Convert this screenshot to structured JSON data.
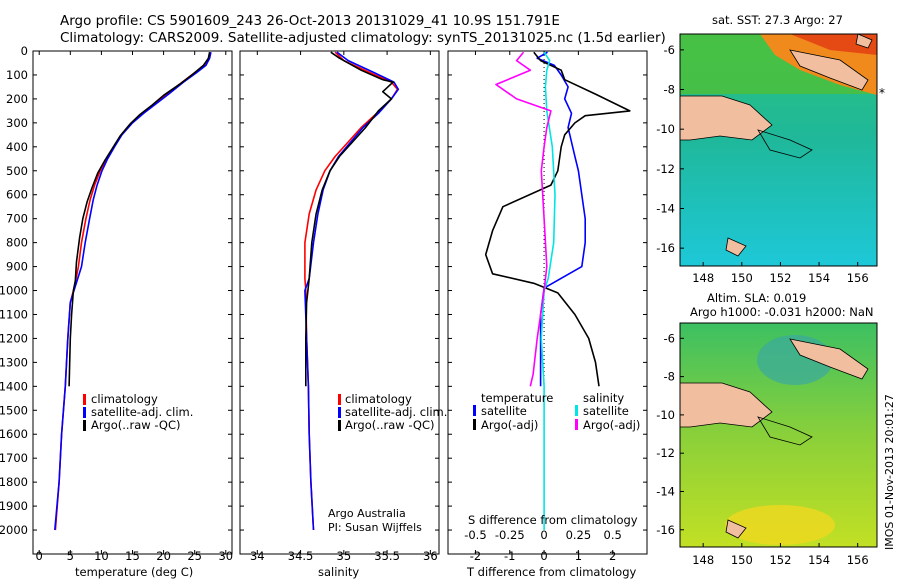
{
  "header": {
    "line1": "Argo profile: CS 5901609_243 26-Oct-2013 20131029_41 10.9S 151.791E",
    "line2": "Climatology: CARS2009. Satellite-adjusted climatology: synTS_20131025.nc (1.5d earlier)"
  },
  "colors": {
    "climatology": "#ff0000",
    "satellite": "#0000ff",
    "argo": "#000000",
    "salinity_satellite": "#00e5e5",
    "salinity_argo": "#ff00ff"
  },
  "chart_data": [
    {
      "type": "line",
      "id": "temperature",
      "xlabel": "temperature (deg C)",
      "ylabel": "",
      "xlim": [
        -1,
        31
      ],
      "ylim": [
        2100,
        0
      ],
      "xticks": [
        "0",
        "5",
        "10",
        "15",
        "20",
        "25",
        "30"
      ],
      "yticks": [
        "0",
        "100",
        "200",
        "300",
        "400",
        "500",
        "600",
        "700",
        "800",
        "900",
        "1000",
        "1100",
        "1200",
        "1300",
        "1400",
        "1500",
        "1600",
        "1700",
        "1800",
        "1900",
        "2000"
      ],
      "legend": [
        "climatology",
        "satellite-adj. clim.",
        "Argo(..raw -QC)"
      ],
      "series": [
        {
          "name": "climatology",
          "points": [
            [
              27.5,
              5
            ],
            [
              27.3,
              30
            ],
            [
              26.5,
              60
            ],
            [
              25,
              90
            ],
            [
              23,
              130
            ],
            [
              20.5,
              180
            ],
            [
              18.5,
              220
            ],
            [
              16.5,
              260
            ],
            [
              14.8,
              300
            ],
            [
              13.2,
              350
            ],
            [
              12,
              400
            ],
            [
              10.8,
              450
            ],
            [
              9.8,
              500
            ],
            [
              8.9,
              560
            ],
            [
              8.2,
              620
            ],
            [
              7.5,
              700
            ],
            [
              6.8,
              800
            ],
            [
              6.3,
              900
            ],
            [
              5.7,
              980
            ],
            [
              5.0,
              1050
            ],
            [
              4.6,
              1200
            ],
            [
              4.2,
              1400
            ],
            [
              3.6,
              1600
            ],
            [
              3.2,
              1800
            ],
            [
              2.6,
              2000
            ]
          ]
        },
        {
          "name": "satellite-adj. clim.",
          "points": [
            [
              27.6,
              5
            ],
            [
              27.4,
              30
            ],
            [
              26.8,
              60
            ],
            [
              25.3,
              90
            ],
            [
              23.2,
              130
            ],
            [
              20.8,
              180
            ],
            [
              18.8,
              220
            ],
            [
              16.8,
              260
            ],
            [
              15.0,
              300
            ],
            [
              13.3,
              350
            ],
            [
              12.1,
              400
            ],
            [
              11.0,
              450
            ],
            [
              10.1,
              500
            ],
            [
              9.3,
              560
            ],
            [
              8.7,
              620
            ],
            [
              8.1,
              700
            ],
            [
              7.4,
              800
            ],
            [
              6.8,
              900
            ],
            [
              5.6,
              1000
            ],
            [
              5.0,
              1050
            ],
            [
              4.6,
              1200
            ],
            [
              4.2,
              1400
            ],
            [
              3.6,
              1600
            ],
            [
              3.2,
              1800
            ],
            [
              2.5,
              2000
            ]
          ]
        },
        {
          "name": "Argo(..raw -QC)",
          "points": [
            [
              27.4,
              5
            ],
            [
              27.2,
              30
            ],
            [
              26.4,
              60
            ],
            [
              24.8,
              95
            ],
            [
              22.8,
              135
            ],
            [
              20.0,
              185
            ],
            [
              18.2,
              225
            ],
            [
              16.2,
              265
            ],
            [
              14.6,
              305
            ],
            [
              13.0,
              355
            ],
            [
              11.8,
              405
            ],
            [
              10.6,
              455
            ],
            [
              9.4,
              510
            ],
            [
              8.5,
              570
            ],
            [
              7.7,
              630
            ],
            [
              7.0,
              700
            ],
            [
              6.5,
              780
            ],
            [
              6.0,
              880
            ],
            [
              5.8,
              960
            ],
            [
              5.5,
              1000
            ],
            [
              5.2,
              1100
            ],
            [
              5.0,
              1200
            ],
            [
              4.9,
              1300
            ],
            [
              4.8,
              1400
            ]
          ]
        }
      ]
    },
    {
      "type": "line",
      "id": "salinity",
      "xlabel": "salinity",
      "ylabel": "",
      "xlim": [
        33.8,
        36.1
      ],
      "ylim": [
        2100,
        0
      ],
      "xticks": [
        "34",
        "34.5",
        "35",
        "35.5",
        "36"
      ],
      "legend": [
        "climatology",
        "satellite-adj. clim.",
        "Argo(..raw -QC)"
      ],
      "annotation": [
        "Argo Australia",
        "PI: Susan Wijffels"
      ],
      "series": [
        {
          "name": "climatology",
          "points": [
            [
              34.9,
              5
            ],
            [
              35.0,
              40
            ],
            [
              35.3,
              90
            ],
            [
              35.55,
              130
            ],
            [
              35.62,
              160
            ],
            [
              35.55,
              200
            ],
            [
              35.38,
              260
            ],
            [
              35.2,
              320
            ],
            [
              35.05,
              380
            ],
            [
              34.9,
              440
            ],
            [
              34.78,
              500
            ],
            [
              34.68,
              580
            ],
            [
              34.6,
              680
            ],
            [
              34.55,
              800
            ],
            [
              34.55,
              950
            ],
            [
              34.56,
              1000
            ],
            [
              34.57,
              1200
            ],
            [
              34.59,
              1400
            ],
            [
              34.6,
              1600
            ],
            [
              34.62,
              1800
            ],
            [
              34.65,
              2000
            ]
          ]
        },
        {
          "name": "satellite-adj. clim.",
          "points": [
            [
              34.92,
              5
            ],
            [
              35.05,
              40
            ],
            [
              35.35,
              90
            ],
            [
              35.58,
              130
            ],
            [
              35.63,
              160
            ],
            [
              35.55,
              200
            ],
            [
              35.4,
              260
            ],
            [
              35.22,
              320
            ],
            [
              35.08,
              380
            ],
            [
              34.94,
              440
            ],
            [
              34.84,
              500
            ],
            [
              34.76,
              580
            ],
            [
              34.7,
              680
            ],
            [
              34.65,
              800
            ],
            [
              34.6,
              950
            ],
            [
              34.55,
              1000
            ],
            [
              34.57,
              1200
            ],
            [
              34.59,
              1400
            ],
            [
              34.6,
              1600
            ],
            [
              34.62,
              1800
            ],
            [
              34.65,
              2000
            ]
          ]
        },
        {
          "name": "Argo(..raw -QC)",
          "points": [
            [
              34.85,
              5
            ],
            [
              34.95,
              30
            ],
            [
              35.2,
              80
            ],
            [
              35.45,
              120
            ],
            [
              35.57,
              130
            ],
            [
              35.45,
              170
            ],
            [
              35.55,
              200
            ],
            [
              35.4,
              250
            ],
            [
              35.25,
              320
            ],
            [
              35.1,
              380
            ],
            [
              34.95,
              440
            ],
            [
              34.84,
              500
            ],
            [
              34.75,
              580
            ],
            [
              34.68,
              680
            ],
            [
              34.63,
              800
            ],
            [
              34.6,
              950
            ],
            [
              34.57,
              1050
            ],
            [
              34.56,
              1200
            ],
            [
              34.56,
              1300
            ],
            [
              34.56,
              1400
            ]
          ]
        }
      ]
    },
    {
      "type": "line",
      "id": "differences",
      "xlabel": "T difference from climatology",
      "xlabel2": "S difference from climatology",
      "xlim": [
        -2.8,
        3.0
      ],
      "ylim": [
        2100,
        0
      ],
      "xticks": [
        "-2",
        "-1",
        "0",
        "1",
        "2"
      ],
      "xticks2": [
        "-0.5",
        "-0.25",
        "0",
        "0.25",
        "0.5"
      ],
      "legend_temperature_title": "temperature",
      "legend_salinity_title": "salinity",
      "legend": [
        "satellite",
        "Argo(-adj)",
        "satellite",
        "Argo(-adj)"
      ],
      "series": [
        {
          "name": "temperature satellite",
          "points": [
            [
              0.1,
              5
            ],
            [
              -0.2,
              30
            ],
            [
              0.3,
              60
            ],
            [
              0.5,
              100
            ],
            [
              0.7,
              150
            ],
            [
              0.6,
              200
            ],
            [
              0.8,
              260
            ],
            [
              0.7,
              320
            ],
            [
              0.8,
              380
            ],
            [
              0.9,
              440
            ],
            [
              1.0,
              500
            ],
            [
              1.1,
              600
            ],
            [
              1.2,
              700
            ],
            [
              1.2,
              800
            ],
            [
              1.1,
              900
            ],
            [
              0.0,
              990
            ],
            [
              -0.1,
              1100
            ],
            [
              -0.1,
              1300
            ],
            [
              -0.1,
              1400
            ]
          ]
        },
        {
          "name": "temperature Argo(-adj)",
          "points": [
            [
              -0.3,
              5
            ],
            [
              -0.1,
              40
            ],
            [
              0.5,
              80
            ],
            [
              0.6,
              120
            ],
            [
              1.5,
              180
            ],
            [
              2.5,
              250
            ],
            [
              1.2,
              270
            ],
            [
              0.9,
              300
            ],
            [
              0.6,
              350
            ],
            [
              0.5,
              400
            ],
            [
              0.4,
              500
            ],
            [
              0.2,
              560
            ],
            [
              -1.2,
              650
            ],
            [
              -1.5,
              750
            ],
            [
              -1.7,
              850
            ],
            [
              -1.5,
              930
            ],
            [
              -0.3,
              970
            ],
            [
              0.4,
              1010
            ],
            [
              0.9,
              1100
            ],
            [
              1.3,
              1200
            ],
            [
              1.5,
              1300
            ],
            [
              1.6,
              1400
            ]
          ]
        },
        {
          "name": "salinity satellite",
          "points": [
            [
              0.0,
              5
            ],
            [
              0.04,
              40
            ],
            [
              0.02,
              80
            ],
            [
              0.01,
              150
            ],
            [
              0.02,
              250
            ],
            [
              0.06,
              400
            ],
            [
              0.08,
              600
            ],
            [
              0.07,
              800
            ],
            [
              0.03,
              950
            ],
            [
              0.0,
              1000
            ],
            [
              -0.02,
              1200
            ],
            [
              0.0,
              1400
            ],
            [
              0.0,
              1600
            ],
            [
              0.0,
              1800
            ],
            [
              0.0,
              2000
            ]
          ]
        },
        {
          "name": "salinity Argo(-adj)",
          "points": [
            [
              -0.15,
              5
            ],
            [
              -0.2,
              40
            ],
            [
              -0.1,
              80
            ],
            [
              -0.35,
              140
            ],
            [
              -0.2,
              200
            ],
            [
              0.05,
              250
            ],
            [
              0.02,
              320
            ],
            [
              0.0,
              400
            ],
            [
              -0.02,
              500
            ],
            [
              0.0,
              700
            ],
            [
              0.02,
              900
            ],
            [
              0.0,
              1000
            ],
            [
              -0.05,
              1200
            ],
            [
              -0.08,
              1350
            ],
            [
              -0.1,
              1400
            ]
          ]
        }
      ]
    },
    {
      "type": "heatmap",
      "id": "sst-map",
      "title": "sat. SST: 27.3 Argo: 27",
      "xticks": [
        "148",
        "150",
        "152",
        "154",
        "156"
      ],
      "yticks": [
        "-6",
        "-8",
        "-10",
        "-12",
        "-14",
        "-16"
      ],
      "xlim": [
        146.8,
        157.0
      ],
      "ylim": [
        -16.9,
        -5.2
      ],
      "profile_location": [
        151.791,
        -10.9
      ]
    },
    {
      "type": "heatmap",
      "id": "sla-map",
      "title": "Altim. SLA: 0.019",
      "subtitle": "Argo h1000: -0.031 h2000: NaN",
      "xticks": [
        "148",
        "150",
        "152",
        "154",
        "156"
      ],
      "yticks": [
        "-6",
        "-8",
        "-10",
        "-12",
        "-14",
        "-16"
      ],
      "xlim": [
        146.8,
        157.0
      ],
      "ylim": [
        -16.9,
        -5.2
      ],
      "profile_location": [
        151.791,
        -10.9
      ]
    }
  ],
  "footer": {
    "credit": "IMOS 01-Nov-2013 20:01:27"
  }
}
